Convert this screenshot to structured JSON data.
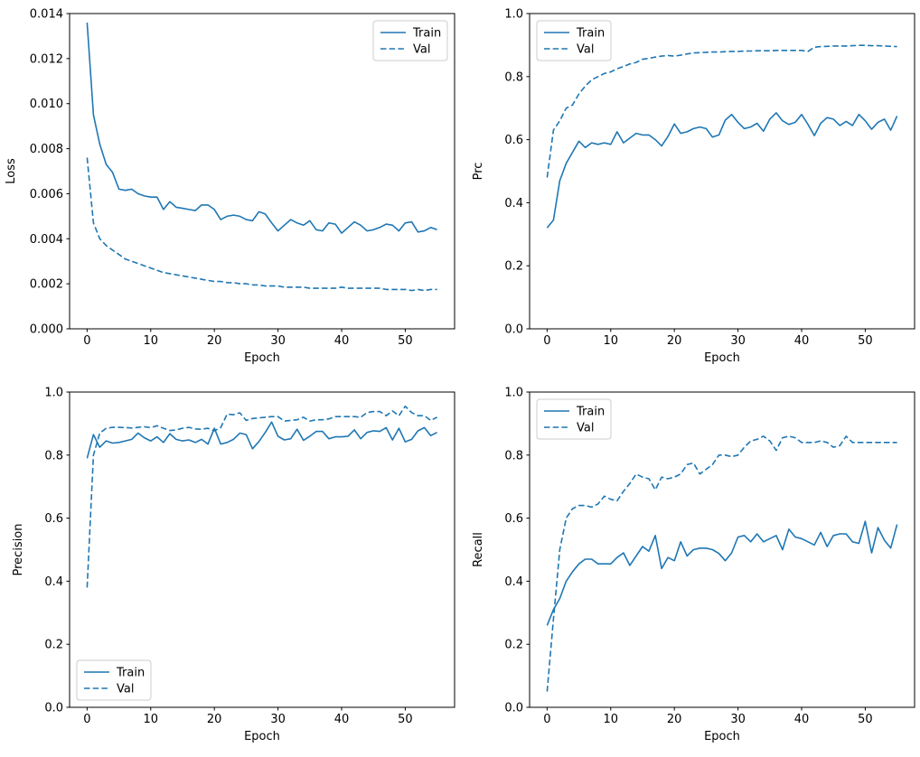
{
  "figure": {
    "background": "#ffffff",
    "line_color": "#1f77b4",
    "text_color": "#000000",
    "spine_color": "#000000",
    "legend_border_color": "#cccccc",
    "legend_background": "#ffffff"
  },
  "chart_data": [
    {
      "id": "loss",
      "type": "line",
      "title": "",
      "xlabel": "Epoch",
      "ylabel": "Loss",
      "xlim": [
        -2.75,
        57.75
      ],
      "ylim": [
        0,
        0.014
      ],
      "xticks": [
        0,
        10,
        20,
        30,
        40,
        50
      ],
      "ytick_values": [
        0,
        0.002,
        0.004,
        0.006,
        0.008,
        0.01,
        0.012,
        0.014
      ],
      "ytick_labels": [
        "0.000",
        "0.002",
        "0.004",
        "0.006",
        "0.008",
        "0.010",
        "0.012",
        "0.014"
      ],
      "grid": false,
      "legend_position": "upper right",
      "x": [
        0,
        1,
        2,
        3,
        4,
        5,
        6,
        7,
        8,
        9,
        10,
        11,
        12,
        13,
        14,
        15,
        16,
        17,
        18,
        19,
        20,
        21,
        22,
        23,
        24,
        25,
        26,
        27,
        28,
        29,
        30,
        31,
        32,
        33,
        34,
        35,
        36,
        37,
        38,
        39,
        40,
        41,
        42,
        43,
        44,
        45,
        46,
        47,
        48,
        49,
        50,
        51,
        52,
        53,
        54,
        55
      ],
      "series": [
        {
          "name": "Train",
          "style": "solid",
          "values": [
            0.0136,
            0.0095,
            0.0082,
            0.0073,
            0.00695,
            0.0062,
            0.00615,
            0.0062,
            0.006,
            0.0059,
            0.00585,
            0.00585,
            0.0053,
            0.00565,
            0.0054,
            0.00535,
            0.0053,
            0.00525,
            0.0055,
            0.0055,
            0.0053,
            0.00485,
            0.005,
            0.00505,
            0.005,
            0.00485,
            0.0048,
            0.0052,
            0.0051,
            0.0047,
            0.00435,
            0.0046,
            0.00485,
            0.0047,
            0.0046,
            0.0048,
            0.0044,
            0.00435,
            0.0047,
            0.00465,
            0.00425,
            0.0045,
            0.00475,
            0.0046,
            0.00435,
            0.0044,
            0.0045,
            0.00465,
            0.0046,
            0.00435,
            0.0047,
            0.00475,
            0.0043,
            0.00435,
            0.0045,
            0.0044
          ]
        },
        {
          "name": "Val",
          "style": "dashed",
          "values": [
            0.0076,
            0.0047,
            0.004,
            0.0037,
            0.0035,
            0.0033,
            0.0031,
            0.003,
            0.0029,
            0.0028,
            0.0027,
            0.0026,
            0.0025,
            0.00245,
            0.0024,
            0.00235,
            0.0023,
            0.00225,
            0.0022,
            0.00215,
            0.0021,
            0.0021,
            0.00205,
            0.00205,
            0.002,
            0.002,
            0.00195,
            0.00195,
            0.0019,
            0.0019,
            0.0019,
            0.00185,
            0.00185,
            0.00185,
            0.00185,
            0.0018,
            0.0018,
            0.0018,
            0.0018,
            0.0018,
            0.00185,
            0.0018,
            0.0018,
            0.0018,
            0.0018,
            0.0018,
            0.0018,
            0.00175,
            0.00175,
            0.00175,
            0.00175,
            0.0017,
            0.00175,
            0.0017,
            0.00175,
            0.00175
          ]
        }
      ]
    },
    {
      "id": "prc",
      "type": "line",
      "title": "",
      "xlabel": "Epoch",
      "ylabel": "Prc",
      "xlim": [
        -2.75,
        57.75
      ],
      "ylim": [
        0,
        1.0
      ],
      "xticks": [
        0,
        10,
        20,
        30,
        40,
        50
      ],
      "ytick_values": [
        0,
        0.2,
        0.4,
        0.6,
        0.8,
        1.0
      ],
      "ytick_labels": [
        "0.0",
        "0.2",
        "0.4",
        "0.6",
        "0.8",
        "1.0"
      ],
      "grid": false,
      "legend_position": "upper left",
      "x": [
        0,
        1,
        2,
        3,
        4,
        5,
        6,
        7,
        8,
        9,
        10,
        11,
        12,
        13,
        14,
        15,
        16,
        17,
        18,
        19,
        20,
        21,
        22,
        23,
        24,
        25,
        26,
        27,
        28,
        29,
        30,
        31,
        32,
        33,
        34,
        35,
        36,
        37,
        38,
        39,
        40,
        41,
        42,
        43,
        44,
        45,
        46,
        47,
        48,
        49,
        50,
        51,
        52,
        53,
        54,
        55
      ],
      "series": [
        {
          "name": "Train",
          "style": "solid",
          "values": [
            0.32,
            0.345,
            0.47,
            0.525,
            0.56,
            0.595,
            0.575,
            0.59,
            0.585,
            0.59,
            0.585,
            0.625,
            0.59,
            0.605,
            0.62,
            0.615,
            0.615,
            0.6,
            0.58,
            0.61,
            0.65,
            0.62,
            0.625,
            0.635,
            0.64,
            0.635,
            0.608,
            0.615,
            0.662,
            0.68,
            0.655,
            0.635,
            0.64,
            0.652,
            0.627,
            0.665,
            0.685,
            0.66,
            0.648,
            0.655,
            0.68,
            0.648,
            0.613,
            0.652,
            0.67,
            0.665,
            0.645,
            0.658,
            0.645,
            0.68,
            0.66,
            0.633,
            0.655,
            0.665,
            0.63,
            0.675
          ]
        },
        {
          "name": "Val",
          "style": "dashed",
          "values": [
            0.48,
            0.63,
            0.66,
            0.7,
            0.71,
            0.745,
            0.77,
            0.79,
            0.8,
            0.81,
            0.815,
            0.825,
            0.832,
            0.84,
            0.845,
            0.855,
            0.858,
            0.862,
            0.865,
            0.867,
            0.865,
            0.868,
            0.872,
            0.875,
            0.876,
            0.877,
            0.878,
            0.878,
            0.879,
            0.88,
            0.88,
            0.881,
            0.881,
            0.882,
            0.882,
            0.882,
            0.883,
            0.883,
            0.883,
            0.883,
            0.883,
            0.88,
            0.893,
            0.895,
            0.896,
            0.897,
            0.897,
            0.897,
            0.898,
            0.899,
            0.899,
            0.898,
            0.898,
            0.897,
            0.896,
            0.895
          ]
        }
      ]
    },
    {
      "id": "precision",
      "type": "line",
      "title": "",
      "xlabel": "Epoch",
      "ylabel": "Precision",
      "xlim": [
        -2.75,
        57.75
      ],
      "ylim": [
        0,
        1.0
      ],
      "xticks": [
        0,
        10,
        20,
        30,
        40,
        50
      ],
      "ytick_values": [
        0,
        0.2,
        0.4,
        0.6,
        0.8,
        1.0
      ],
      "ytick_labels": [
        "0.0",
        "0.2",
        "0.4",
        "0.6",
        "0.8",
        "1.0"
      ],
      "grid": false,
      "legend_position": "lower left",
      "x": [
        0,
        1,
        2,
        3,
        4,
        5,
        6,
        7,
        8,
        9,
        10,
        11,
        12,
        13,
        14,
        15,
        16,
        17,
        18,
        19,
        20,
        21,
        22,
        23,
        24,
        25,
        26,
        27,
        28,
        29,
        30,
        31,
        32,
        33,
        34,
        35,
        36,
        37,
        38,
        39,
        40,
        41,
        42,
        43,
        44,
        45,
        46,
        47,
        48,
        49,
        50,
        51,
        52,
        53,
        54,
        55
      ],
      "series": [
        {
          "name": "Train",
          "style": "solid",
          "values": [
            0.79,
            0.865,
            0.825,
            0.845,
            0.838,
            0.84,
            0.845,
            0.85,
            0.87,
            0.855,
            0.845,
            0.858,
            0.84,
            0.868,
            0.85,
            0.845,
            0.848,
            0.84,
            0.85,
            0.835,
            0.885,
            0.835,
            0.84,
            0.85,
            0.87,
            0.865,
            0.82,
            0.843,
            0.872,
            0.905,
            0.86,
            0.848,
            0.852,
            0.882,
            0.847,
            0.86,
            0.875,
            0.875,
            0.852,
            0.858,
            0.858,
            0.86,
            0.88,
            0.852,
            0.872,
            0.877,
            0.875,
            0.887,
            0.848,
            0.885,
            0.842,
            0.85,
            0.877,
            0.887,
            0.862,
            0.872
          ]
        },
        {
          "name": "Val",
          "style": "dashed",
          "values": [
            0.38,
            0.8,
            0.87,
            0.885,
            0.888,
            0.888,
            0.887,
            0.886,
            0.888,
            0.89,
            0.887,
            0.893,
            0.885,
            0.878,
            0.88,
            0.885,
            0.888,
            0.883,
            0.882,
            0.885,
            0.877,
            0.887,
            0.93,
            0.928,
            0.934,
            0.91,
            0.916,
            0.918,
            0.92,
            0.922,
            0.922,
            0.908,
            0.91,
            0.912,
            0.92,
            0.908,
            0.912,
            0.912,
            0.915,
            0.922,
            0.922,
            0.922,
            0.922,
            0.92,
            0.935,
            0.938,
            0.938,
            0.925,
            0.94,
            0.925,
            0.955,
            0.935,
            0.925,
            0.925,
            0.91,
            0.92
          ]
        }
      ]
    },
    {
      "id": "recall",
      "type": "line",
      "title": "",
      "xlabel": "Epoch",
      "ylabel": "Recall",
      "xlim": [
        -2.75,
        57.75
      ],
      "ylim": [
        0,
        1.0
      ],
      "xticks": [
        0,
        10,
        20,
        30,
        40,
        50
      ],
      "ytick_values": [
        0,
        0.2,
        0.4,
        0.6,
        0.8,
        1.0
      ],
      "ytick_labels": [
        "0.0",
        "0.2",
        "0.4",
        "0.6",
        "0.8",
        "1.0"
      ],
      "grid": false,
      "legend_position": "upper left",
      "x": [
        0,
        1,
        2,
        3,
        4,
        5,
        6,
        7,
        8,
        9,
        10,
        11,
        12,
        13,
        14,
        15,
        16,
        17,
        18,
        19,
        20,
        21,
        22,
        23,
        24,
        25,
        26,
        27,
        28,
        29,
        30,
        31,
        32,
        33,
        34,
        35,
        36,
        37,
        38,
        39,
        40,
        41,
        42,
        43,
        44,
        45,
        46,
        47,
        48,
        49,
        50,
        51,
        52,
        53,
        54,
        55
      ],
      "series": [
        {
          "name": "Train",
          "style": "solid",
          "values": [
            0.26,
            0.31,
            0.345,
            0.4,
            0.43,
            0.455,
            0.47,
            0.47,
            0.455,
            0.455,
            0.455,
            0.475,
            0.49,
            0.45,
            0.48,
            0.51,
            0.495,
            0.545,
            0.44,
            0.475,
            0.465,
            0.525,
            0.48,
            0.5,
            0.505,
            0.505,
            0.5,
            0.488,
            0.465,
            0.49,
            0.54,
            0.545,
            0.525,
            0.55,
            0.525,
            0.535,
            0.545,
            0.5,
            0.565,
            0.54,
            0.535,
            0.525,
            0.515,
            0.555,
            0.51,
            0.545,
            0.55,
            0.55,
            0.525,
            0.52,
            0.59,
            0.49,
            0.57,
            0.53,
            0.505,
            0.58
          ]
        },
        {
          "name": "Val",
          "style": "dashed",
          "values": [
            0.05,
            0.28,
            0.5,
            0.6,
            0.63,
            0.64,
            0.64,
            0.635,
            0.645,
            0.67,
            0.66,
            0.655,
            0.685,
            0.71,
            0.74,
            0.73,
            0.725,
            0.69,
            0.73,
            0.725,
            0.73,
            0.74,
            0.77,
            0.775,
            0.74,
            0.755,
            0.77,
            0.8,
            0.8,
            0.795,
            0.8,
            0.825,
            0.845,
            0.85,
            0.86,
            0.845,
            0.815,
            0.855,
            0.86,
            0.855,
            0.84,
            0.84,
            0.84,
            0.845,
            0.84,
            0.825,
            0.83,
            0.86,
            0.84,
            0.84,
            0.84,
            0.84,
            0.84,
            0.84,
            0.84,
            0.84
          ]
        }
      ]
    }
  ]
}
